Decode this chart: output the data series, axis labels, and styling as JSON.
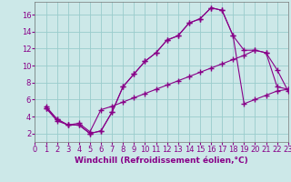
{
  "background_color": "#cce8e8",
  "grid_color": "#99cccc",
  "line_color": "#880088",
  "marker": "+",
  "marker_size": 4,
  "marker_lw": 1.0,
  "xlabel": "Windchill (Refroidissement éolien,°C)",
  "xlabel_fontsize": 6.5,
  "tick_fontsize": 6,
  "xlim": [
    0,
    23
  ],
  "ylim": [
    1.0,
    17.5
  ],
  "xticks": [
    0,
    1,
    2,
    3,
    4,
    5,
    6,
    7,
    8,
    9,
    10,
    11,
    12,
    13,
    14,
    15,
    16,
    17,
    18,
    19,
    20,
    21,
    22,
    23
  ],
  "yticks": [
    2,
    4,
    6,
    8,
    10,
    12,
    14,
    16
  ],
  "lw": 0.8,
  "curve1_x": [
    1,
    2,
    3,
    4,
    5,
    6,
    7,
    8,
    9,
    10,
    11,
    12,
    13,
    14,
    15,
    16,
    17,
    18,
    19,
    20,
    21,
    22,
    23
  ],
  "curve1_y": [
    5.2,
    3.7,
    3.0,
    3.0,
    2.0,
    2.3,
    4.5,
    7.5,
    9.0,
    10.5,
    11.5,
    13.0,
    13.5,
    15.0,
    15.5,
    16.8,
    16.5,
    13.5,
    11.8,
    11.8,
    11.5,
    9.5,
    7.0
  ],
  "curve2_x": [
    1,
    2,
    3,
    4,
    5,
    6,
    7,
    8,
    9,
    10,
    11,
    12,
    13,
    14,
    15,
    16,
    17,
    18,
    19,
    20,
    21,
    22,
    23
  ],
  "curve2_y": [
    5.0,
    3.5,
    3.0,
    3.2,
    2.2,
    4.8,
    5.2,
    5.7,
    6.2,
    6.7,
    7.2,
    7.7,
    8.2,
    8.7,
    9.2,
    9.7,
    10.2,
    10.7,
    11.2,
    11.8,
    11.5,
    7.5,
    7.2
  ],
  "curve3_x": [
    1,
    2,
    3,
    4,
    5,
    6,
    7,
    8,
    9,
    10,
    11,
    12,
    13,
    14,
    15,
    16,
    17,
    18,
    19,
    20,
    21,
    22,
    23
  ],
  "curve3_y": [
    5.0,
    3.7,
    3.0,
    3.0,
    2.0,
    2.3,
    4.5,
    7.5,
    9.0,
    10.5,
    11.5,
    13.0,
    13.5,
    15.0,
    15.5,
    16.8,
    16.5,
    13.5,
    5.5,
    6.0,
    6.5,
    7.0,
    7.2
  ]
}
